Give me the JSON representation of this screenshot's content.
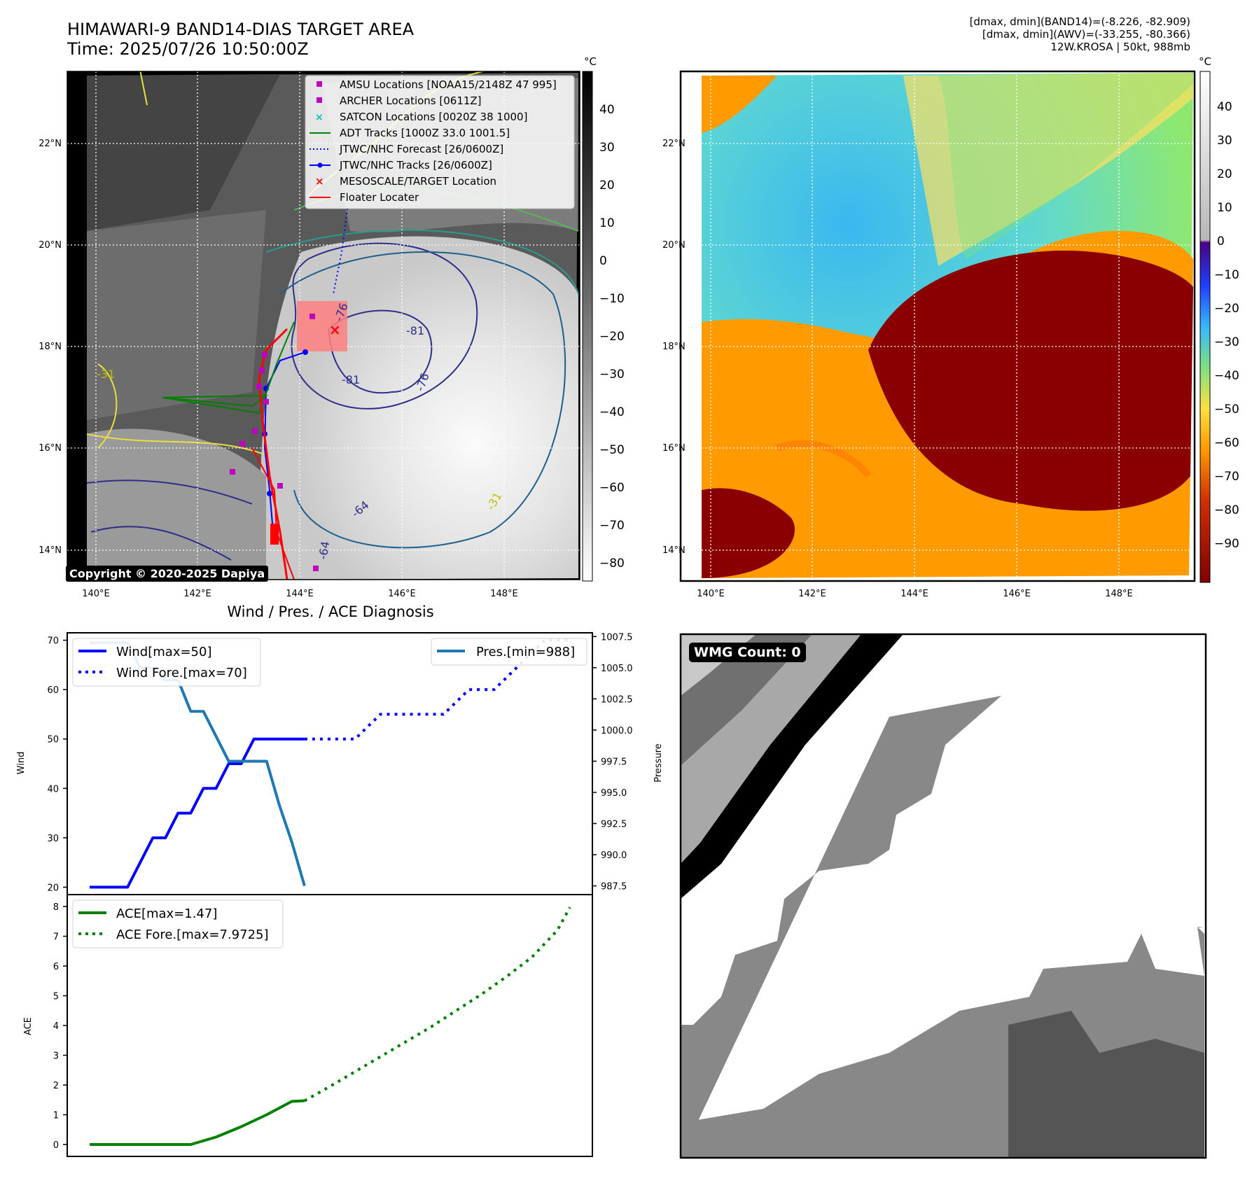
{
  "header": {
    "title_line1": "HIMAWARI-9 BAND14-DIAS TARGET AREA",
    "title_line2": "Time: 2025/07/26 10:50:00Z",
    "info_line1": "[dmax, dmin](BAND14)=(-8.226, -82.909)",
    "info_line2": "[dmax, dmin](AWV)=(-33.255, -80.366)",
    "info_line3": "12W.KROSA | 50kt, 988mb"
  },
  "map_left": {
    "lon_ticks": [
      "140°E",
      "142°E",
      "144°E",
      "146°E",
      "148°E"
    ],
    "lat_ticks": [
      "22°N",
      "20°N",
      "18°N",
      "16°N",
      "14°N"
    ],
    "contour_labels": [
      "-76",
      "-81",
      "-81",
      "-76",
      "-64",
      "-64",
      "-31",
      "-31"
    ],
    "copyright": "Copyright © 2020-2025 Dapiya",
    "colorbar": {
      "unit": "°C",
      "ticks": [
        "40",
        "30",
        "20",
        "10",
        "0",
        "−10",
        "−20",
        "−30",
        "−40",
        "−50",
        "−60",
        "−70",
        "−80"
      ]
    },
    "legend": [
      {
        "label": "AMSU Locations [NOAA15/2148Z 47 995]",
        "marker": "square",
        "color": "#bf00bf"
      },
      {
        "label": "ARCHER Locations [0611Z]",
        "marker": "square",
        "color": "#bf00bf"
      },
      {
        "label": "SATCON Locations [0020Z 38 1000]",
        "marker": "x",
        "color": "#00bfbf"
      },
      {
        "label": "ADT Tracks [1000Z 33.0 1001.5]",
        "marker": "line",
        "color": "#008000"
      },
      {
        "label": "JTWC/NHC Forecast [26/0600Z]",
        "marker": "dotted",
        "color": "#0000ff"
      },
      {
        "label": "JTWC/NHC Tracks [26/0600Z]",
        "marker": "line-dot",
        "color": "#0000ff"
      },
      {
        "label": "MESOSCALE/TARGET Location",
        "marker": "x",
        "color": "#ff0000"
      },
      {
        "label": "Floater Locater",
        "marker": "line",
        "color": "#ff0000"
      }
    ]
  },
  "map_right": {
    "lon_ticks": [
      "140°E",
      "142°E",
      "144°E",
      "146°E",
      "148°E"
    ],
    "lat_ticks": [
      "22°N",
      "20°N",
      "18°N",
      "16°N",
      "14°N"
    ],
    "colorbar": {
      "unit": "°C",
      "upper_ticks": [
        "40",
        "30",
        "20",
        "10",
        "0"
      ],
      "lower_ticks": [
        "−10",
        "−20",
        "−30",
        "−40",
        "−50",
        "−60",
        "−70",
        "−80",
        "−90"
      ]
    }
  },
  "diagnosis": {
    "title": "Wind / Pres. / ACE Diagnosis",
    "wind_ylabel": "Wind",
    "pres_ylabel": "Pressure",
    "ace_ylabel": "ACE",
    "legend_wind": "Wind[max=50]",
    "legend_wind_fore": "Wind Fore.[max=70]",
    "legend_pres": "Pres.[min=988]",
    "legend_ace": "ACE[max=1.47]",
    "legend_ace_fore": "ACE Fore.[max=7.9725]"
  },
  "wmg": {
    "label": "WMG Count: 0"
  },
  "chart_data": [
    {
      "type": "line",
      "panel": "Wind / Pressure",
      "title": "Wind / Pres. / ACE Diagnosis",
      "x": [
        0,
        1,
        2,
        3,
        4,
        5,
        6,
        7,
        8,
        9,
        10,
        11,
        12,
        13,
        14,
        15,
        16,
        17,
        18,
        19,
        20,
        21,
        22,
        23,
        24,
        25,
        26,
        27,
        28,
        29,
        30,
        31,
        32,
        33,
        34,
        35,
        36,
        37,
        38
      ],
      "ylabel": "Wind",
      "ylim": [
        18.5,
        71.5
      ],
      "y_ticks": [
        20,
        30,
        40,
        50,
        60,
        70
      ],
      "y2label": "Pressure",
      "y2lim": [
        986.8,
        1007.8
      ],
      "y2_ticks": [
        987.5,
        990.0,
        992.5,
        995.0,
        997.5,
        1000.0,
        1002.5,
        1005.0,
        1007.5
      ],
      "series": [
        {
          "name": "Wind[max=50]",
          "axis": "left",
          "style": "solid",
          "color": "#0000ff",
          "x": [
            0,
            1.5,
            3,
            3.5,
            4,
            5,
            5.5,
            6,
            6.5,
            7,
            7.5,
            8,
            8.5,
            9,
            9.5,
            10,
            10.5,
            11,
            11.5,
            12,
            12.5,
            13,
            13.5,
            14,
            14.5,
            15,
            15.5,
            16,
            17
          ],
          "values": [
            20,
            20,
            20,
            22.5,
            25,
            30,
            30,
            30,
            32.5,
            35,
            35,
            35,
            37.5,
            40,
            40,
            40,
            42.5,
            45,
            45,
            45,
            47.5,
            50,
            50,
            50,
            50,
            50,
            50,
            50,
            50
          ]
        },
        {
          "name": "Wind Fore.[max=70]",
          "axis": "left",
          "style": "dotted",
          "color": "#0000ff",
          "x": [
            17,
            19,
            20,
            21,
            22,
            23,
            24,
            25,
            26,
            28,
            29,
            30,
            31,
            32,
            33,
            34,
            35,
            36,
            37,
            38
          ],
          "values": [
            50,
            50,
            50,
            50,
            52.5,
            55,
            55,
            55,
            55,
            55,
            57.5,
            60,
            60,
            60,
            62.5,
            65,
            67.5,
            70,
            70,
            70
          ]
        },
        {
          "name": "Pres.[min=988]",
          "axis": "right",
          "style": "solid",
          "color": "#1f77b4",
          "x": [
            0,
            1,
            2,
            3,
            4,
            5,
            6,
            7,
            8,
            9,
            10,
            11,
            12,
            13,
            14,
            15,
            16,
            17
          ],
          "values": [
            1007,
            1007,
            1007,
            1007,
            1005,
            1005,
            1004,
            1004,
            1001.5,
            1001.5,
            999.5,
            997.5,
            997.5,
            997.5,
            997.5,
            994,
            991,
            987.5
          ]
        }
      ]
    },
    {
      "type": "line",
      "panel": "ACE",
      "x": [
        0,
        1,
        2,
        3,
        4,
        5,
        6,
        7,
        8,
        9,
        10,
        11,
        12,
        13,
        14,
        15,
        16,
        17,
        18,
        19,
        20,
        21,
        22,
        23,
        24,
        25,
        26,
        27,
        28,
        29,
        30,
        31,
        32,
        33,
        34,
        35,
        36,
        37,
        38
      ],
      "ylabel": "ACE",
      "ylim": [
        -0.4,
        8.4
      ],
      "y_ticks": [
        0,
        1,
        2,
        3,
        4,
        5,
        6,
        7,
        8
      ],
      "series": [
        {
          "name": "ACE[max=1.47]",
          "style": "solid",
          "color": "#008000",
          "x": [
            0,
            3,
            6,
            8,
            10,
            12,
            14,
            16,
            17
          ],
          "values": [
            0,
            0,
            0,
            0,
            0.25,
            0.6,
            1.0,
            1.45,
            1.47
          ]
        },
        {
          "name": "ACE Fore.[max=7.9725]",
          "style": "dotted",
          "color": "#008000",
          "x": [
            17,
            19,
            21,
            23,
            25,
            27,
            29,
            31,
            33,
            35,
            37,
            38
          ],
          "values": [
            1.47,
            1.95,
            2.45,
            2.95,
            3.45,
            3.95,
            4.5,
            5.05,
            5.65,
            6.3,
            7.2,
            7.9725
          ]
        }
      ]
    }
  ]
}
